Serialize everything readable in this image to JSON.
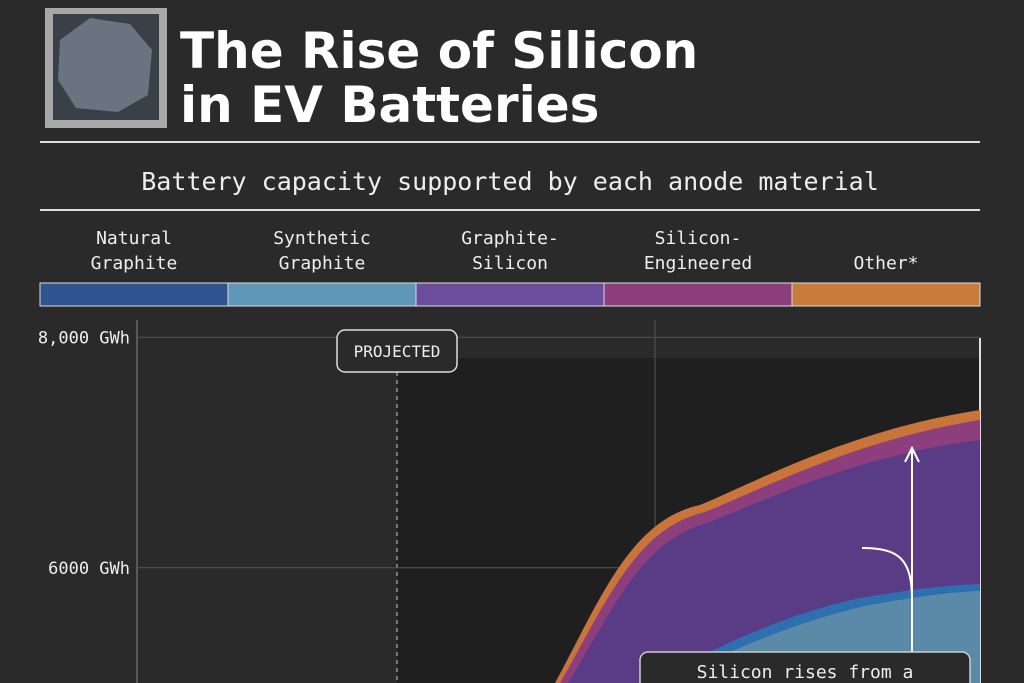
{
  "header": {
    "title_line1": "The Rise of Silicon",
    "title_line2": "in EV Batteries",
    "subtitle": "Battery capacity supported by each anode material"
  },
  "legend": [
    {
      "lines": [
        "Natural",
        "Graphite"
      ],
      "color": "#2f5490"
    },
    {
      "lines": [
        "Synthetic",
        "Graphite"
      ],
      "color": "#5f97b8"
    },
    {
      "lines": [
        "Graphite-",
        "Silicon"
      ],
      "color": "#6c4c9c"
    },
    {
      "lines": [
        "Silicon-",
        "Engineered"
      ],
      "color": "#8c3f7c"
    },
    {
      "lines": [
        "Other*"
      ],
      "color": "#c87c3c"
    }
  ],
  "chart": {
    "ylim": [
      5000,
      8150
    ],
    "yticks": [
      {
        "value": 8000,
        "label": "8,000 GWh"
      },
      {
        "value": 6000,
        "label": "6000 GWh"
      }
    ],
    "projected_label": "PROJECTED",
    "annotation": "Silicon rises from a"
  }
}
